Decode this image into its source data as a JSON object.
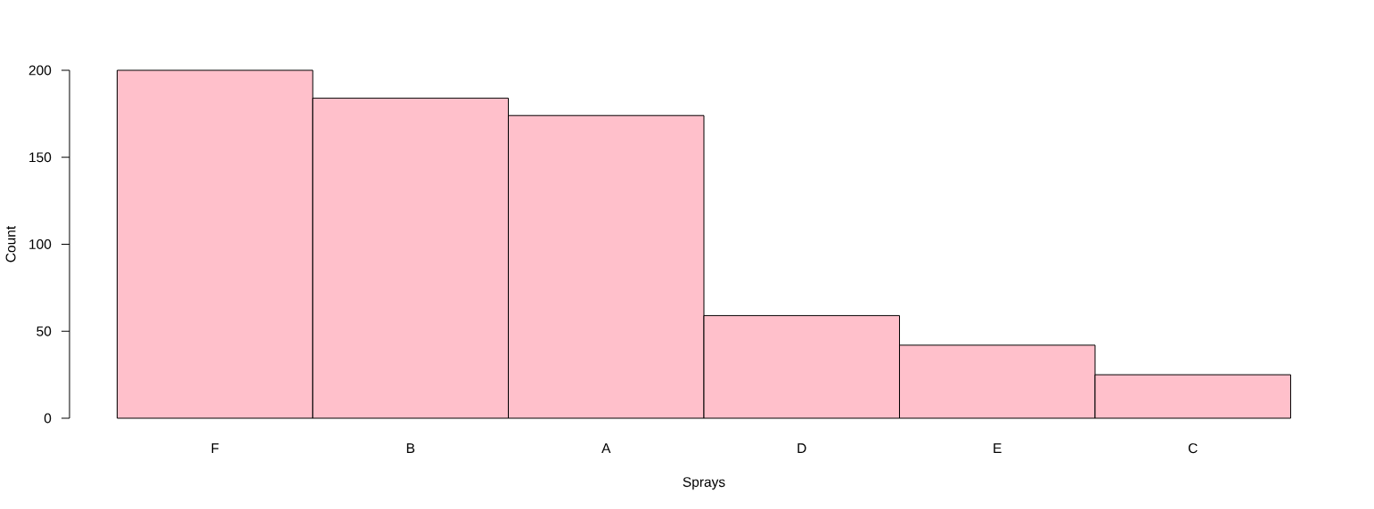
{
  "chart_data": {
    "type": "bar",
    "xlabel": "Sprays",
    "ylabel": "Count",
    "categories": [
      "F",
      "B",
      "A",
      "D",
      "E",
      "C"
    ],
    "values": [
      200,
      184,
      174,
      59,
      42,
      25
    ],
    "color": "#ffc0cb",
    "ylim": [
      0,
      200
    ],
    "yticks": [
      0,
      50,
      100,
      150,
      200
    ]
  }
}
